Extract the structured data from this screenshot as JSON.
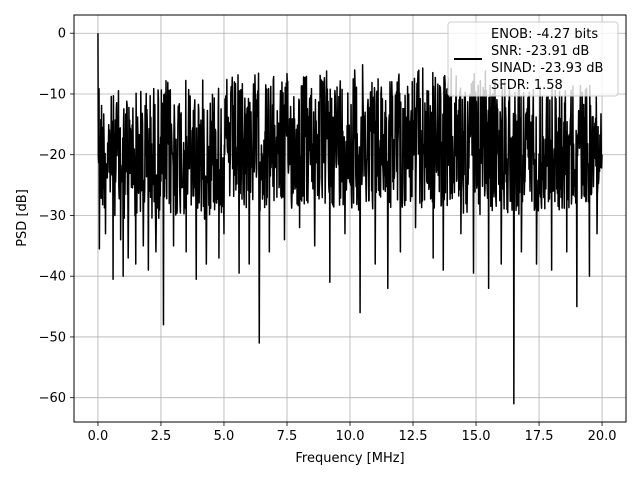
{
  "chart_data": {
    "type": "line",
    "xlabel": "Frequency [MHz]",
    "ylabel": "PSD [dB]",
    "xlim": [
      -0.95,
      20.95
    ],
    "ylim": [
      -64,
      3
    ],
    "x_ticks": [
      0.0,
      2.5,
      5.0,
      7.5,
      10.0,
      12.5,
      15.0,
      17.5,
      20.0
    ],
    "x_tick_labels": [
      "0.0",
      "2.5",
      "5.0",
      "7.5",
      "10.0",
      "12.5",
      "15.0",
      "17.5",
      "20.0"
    ],
    "y_ticks": [
      0,
      -10,
      -20,
      -30,
      -40,
      -50,
      -60
    ],
    "y_tick_labels": [
      "0",
      "−10",
      "−20",
      "−30",
      "−40",
      "−50",
      "−60"
    ],
    "grid": true,
    "legend": {
      "placement": "top-right",
      "entries": [
        "ENOB: -4.27 bits",
        "SNR: -23.91 dB",
        "SINAD: -23.93 dB",
        "SFDR: 1.58"
      ]
    },
    "series": [
      {
        "color": "#000000",
        "envelope_upper": [
          [
            0.0,
            0
          ],
          [
            0.05,
            -3
          ],
          [
            0.1,
            -8
          ],
          [
            0.2,
            -9
          ],
          [
            0.3,
            -9.5
          ],
          [
            0.5,
            -9
          ],
          [
            1.0,
            -8.5
          ],
          [
            2.0,
            -7.5
          ],
          [
            3.0,
            -7
          ],
          [
            4.0,
            -7
          ],
          [
            5.0,
            -6.5
          ],
          [
            6.0,
            -6
          ],
          [
            7.0,
            -6
          ],
          [
            8.0,
            -5.5
          ],
          [
            9.0,
            -5.5
          ],
          [
            10.0,
            -5
          ],
          [
            11.0,
            -5
          ],
          [
            12.0,
            -5
          ],
          [
            13.0,
            -5
          ],
          [
            14.0,
            -5.5
          ],
          [
            15.0,
            -6
          ],
          [
            16.0,
            -6
          ],
          [
            17.0,
            -6.5
          ],
          [
            18.0,
            -7
          ],
          [
            19.0,
            -7.5
          ],
          [
            20.0,
            -8
          ]
        ],
        "typical_lower": [
          [
            0.0,
            -28
          ],
          [
            1.0,
            -30
          ],
          [
            3.0,
            -30
          ],
          [
            5.0,
            -29
          ],
          [
            7.0,
            -28
          ],
          [
            9.0,
            -28
          ],
          [
            11.0,
            -28
          ],
          [
            13.0,
            -28
          ],
          [
            15.0,
            -29
          ],
          [
            17.0,
            -29
          ],
          [
            19.0,
            -28
          ],
          [
            20.0,
            -26
          ]
        ],
        "dips": [
          [
            0.05,
            -35.5
          ],
          [
            0.3,
            -33
          ],
          [
            0.6,
            -40.5
          ],
          [
            0.9,
            -34
          ],
          [
            1.0,
            -40
          ],
          [
            1.2,
            -37
          ],
          [
            1.5,
            -38
          ],
          [
            1.8,
            -35
          ],
          [
            2.0,
            -39
          ],
          [
            2.3,
            -36
          ],
          [
            2.6,
            -48
          ],
          [
            3.0,
            -35
          ],
          [
            3.5,
            -36
          ],
          [
            3.9,
            -40.5
          ],
          [
            4.3,
            -38
          ],
          [
            4.8,
            -37
          ],
          [
            5.0,
            -33
          ],
          [
            5.6,
            -39.5
          ],
          [
            6.0,
            -38
          ],
          [
            6.4,
            -51
          ],
          [
            6.8,
            -36
          ],
          [
            7.4,
            -34
          ],
          [
            8.0,
            -32
          ],
          [
            8.6,
            -35
          ],
          [
            9.2,
            -41
          ],
          [
            9.8,
            -33
          ],
          [
            10.4,
            -46
          ],
          [
            11.0,
            -38
          ],
          [
            11.5,
            -42
          ],
          [
            12.0,
            -36
          ],
          [
            12.6,
            -32
          ],
          [
            13.3,
            -37
          ],
          [
            13.7,
            -39
          ],
          [
            14.4,
            -33
          ],
          [
            14.9,
            -39.5
          ],
          [
            15.5,
            -42
          ],
          [
            16.0,
            -38
          ],
          [
            16.5,
            -61
          ],
          [
            16.8,
            -36
          ],
          [
            17.4,
            -38
          ],
          [
            18.0,
            -39
          ],
          [
            18.6,
            -36
          ],
          [
            19.0,
            -45
          ],
          [
            19.5,
            -40
          ],
          [
            19.8,
            -33
          ]
        ]
      }
    ]
  }
}
